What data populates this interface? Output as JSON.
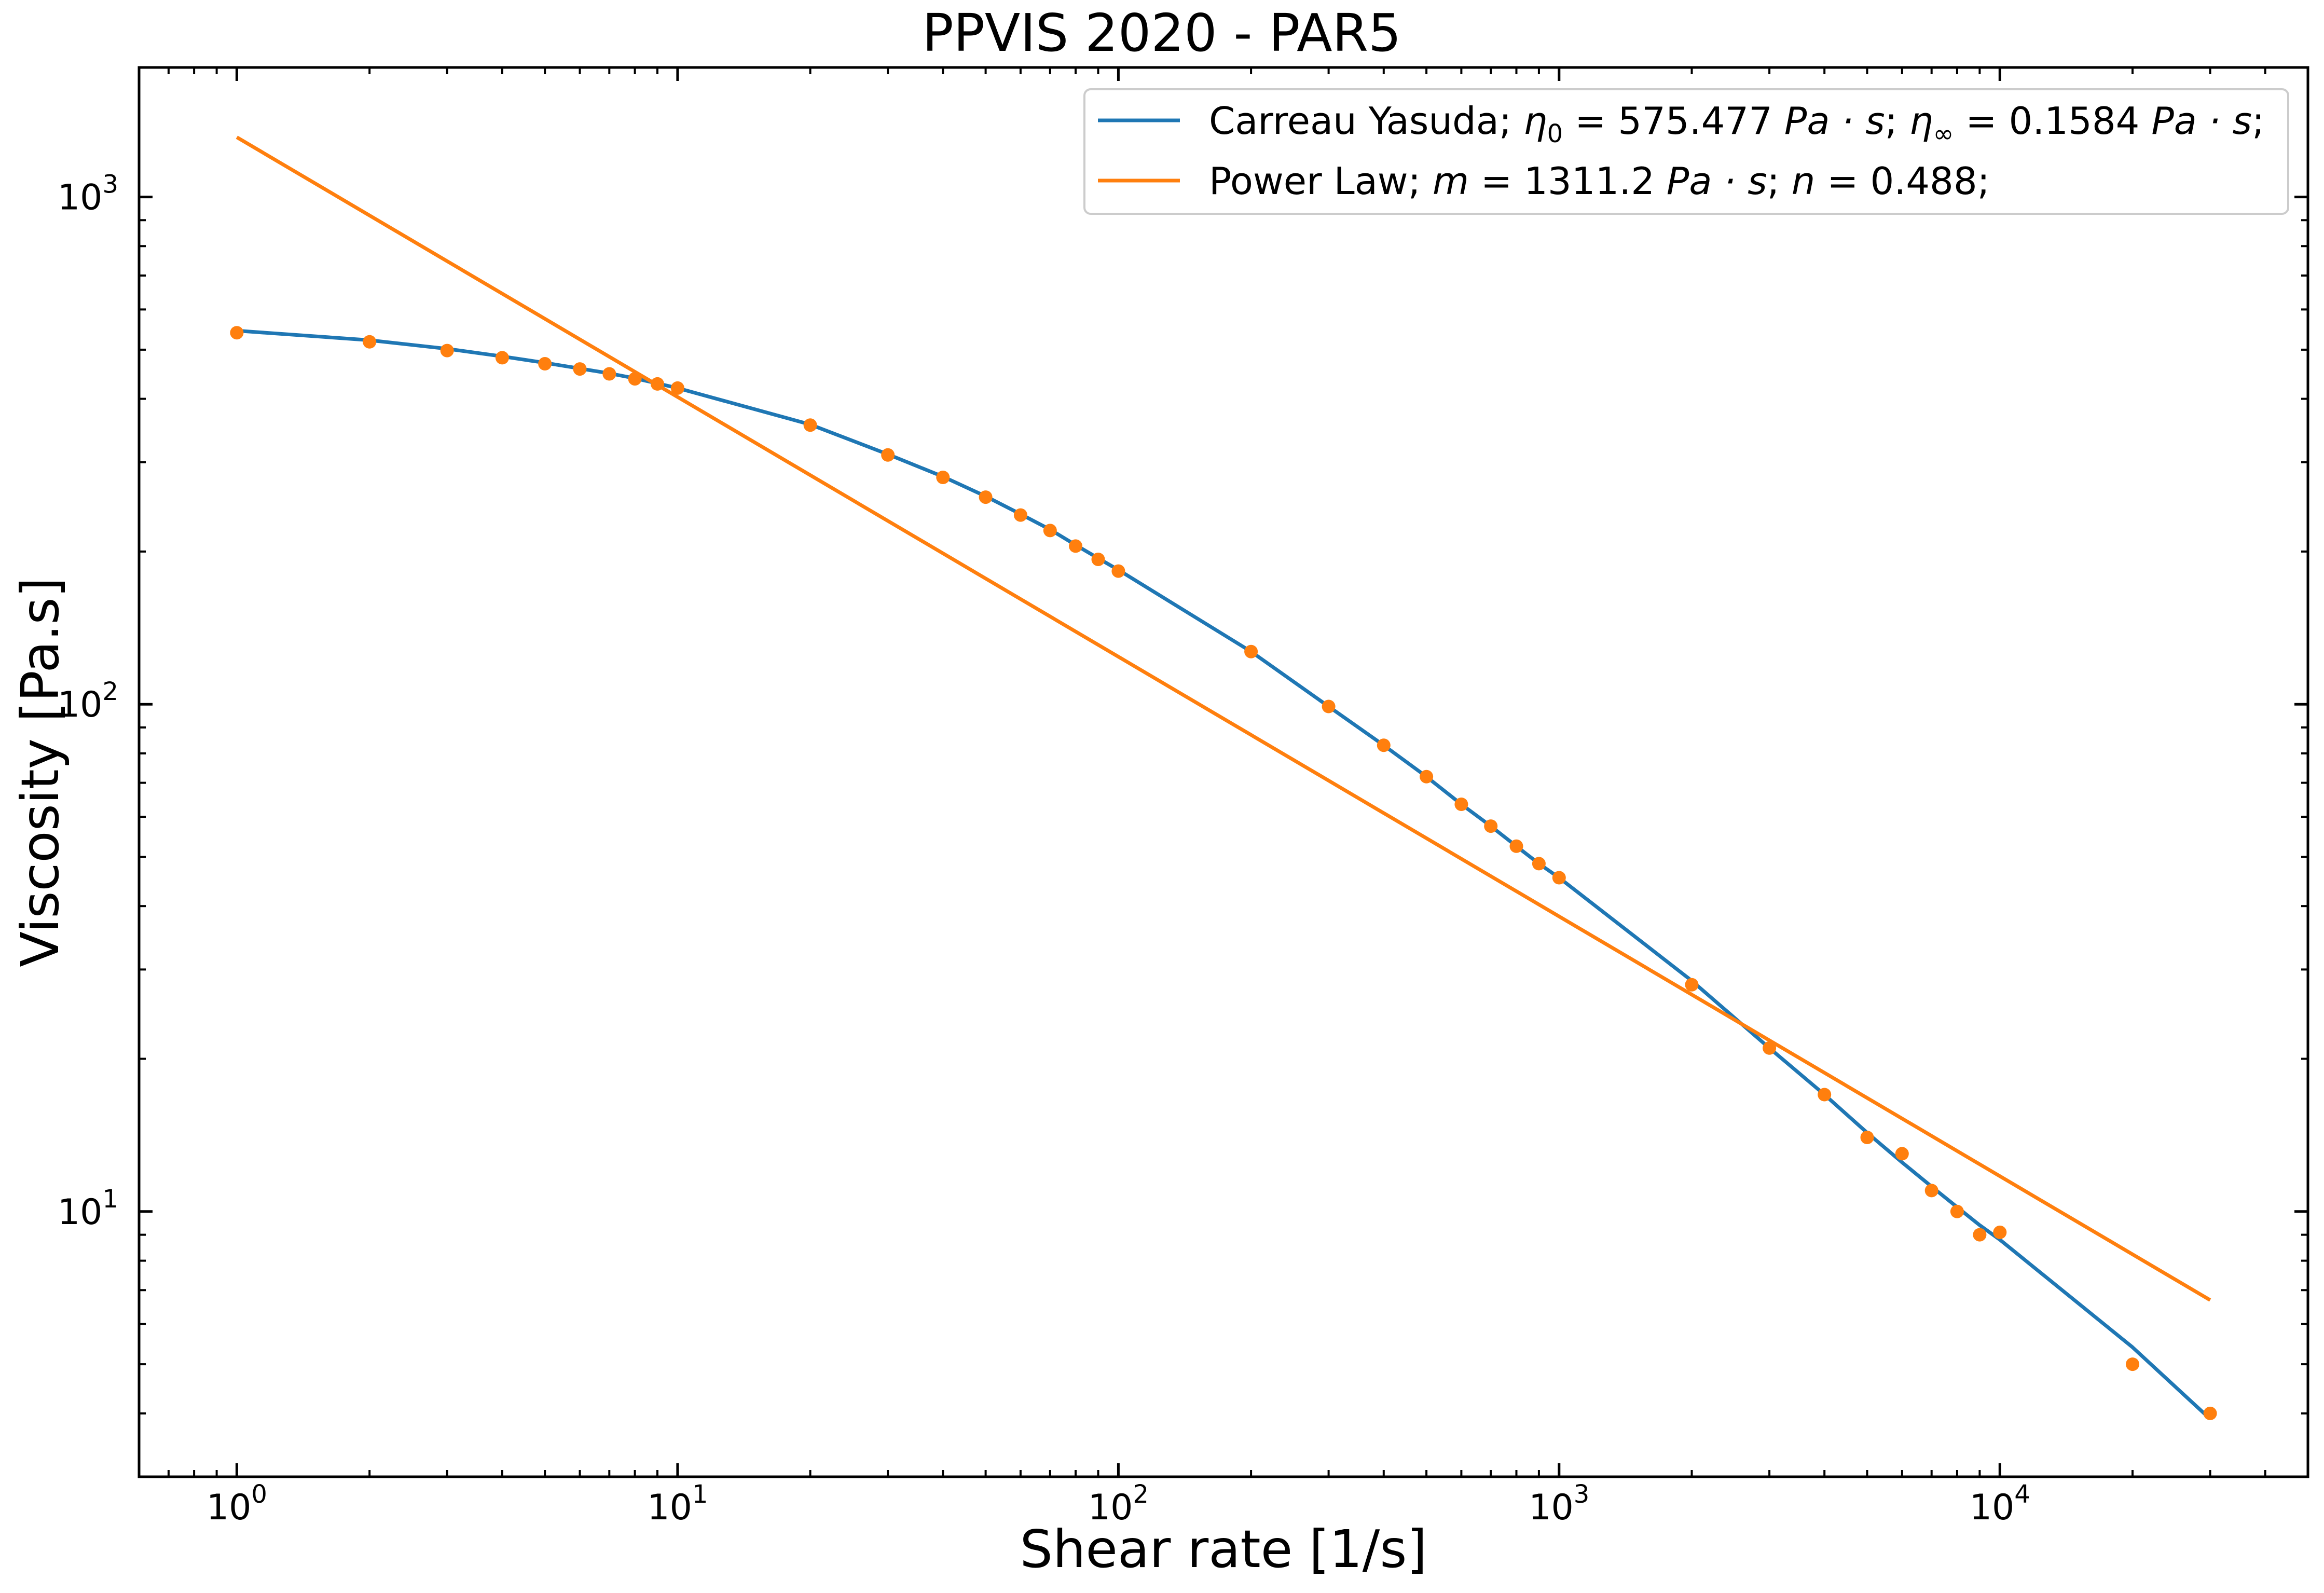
{
  "chart_data": {
    "type": "scatter",
    "title": "PPVIS 2020 - PAR5",
    "xlabel": "Shear rate [1/s]",
    "ylabel": "Viscosity [Pa.s]",
    "xscale": "log",
    "yscale": "log",
    "xlim": [
      0.6,
      50000
    ],
    "ylim": [
      3.0,
      1800
    ],
    "legend_position": "top-right",
    "x_ticks": [
      {
        "base": "10",
        "exp": "0",
        "value": 1
      },
      {
        "base": "10",
        "exp": "1",
        "value": 10
      },
      {
        "base": "10",
        "exp": "2",
        "value": 100
      },
      {
        "base": "10",
        "exp": "3",
        "value": 1000
      },
      {
        "base": "10",
        "exp": "4",
        "value": 10000
      }
    ],
    "y_ticks": [
      {
        "base": "10",
        "exp": "1",
        "value": 10
      },
      {
        "base": "10",
        "exp": "2",
        "value": 100
      },
      {
        "base": "10",
        "exp": "3",
        "value": 1000
      }
    ],
    "measured": {
      "color": "#ff7f0e",
      "points": [
        [
          1,
          540
        ],
        [
          2,
          518
        ],
        [
          3,
          498
        ],
        [
          4,
          482
        ],
        [
          5,
          469
        ],
        [
          6,
          458
        ],
        [
          7,
          448
        ],
        [
          8,
          438
        ],
        [
          9,
          428
        ],
        [
          10,
          420
        ],
        [
          20,
          355
        ],
        [
          30,
          310
        ],
        [
          40,
          280
        ],
        [
          50,
          256
        ],
        [
          60,
          236
        ],
        [
          70,
          220
        ],
        [
          80,
          205
        ],
        [
          90,
          193
        ],
        [
          100,
          183
        ],
        [
          200,
          127
        ],
        [
          300,
          99
        ],
        [
          400,
          83
        ],
        [
          500,
          72
        ],
        [
          600,
          63.5
        ],
        [
          700,
          57.5
        ],
        [
          800,
          52.5
        ],
        [
          900,
          48.5
        ],
        [
          1000,
          45.5
        ],
        [
          2000,
          28
        ],
        [
          3000,
          21
        ],
        [
          4000,
          17
        ],
        [
          5000,
          14
        ],
        [
          6000,
          13
        ],
        [
          7000,
          11
        ],
        [
          8000,
          10
        ],
        [
          9000,
          9
        ],
        [
          10000,
          9.1
        ],
        [
          20000,
          5
        ],
        [
          30000,
          4
        ]
      ]
    },
    "series": [
      {
        "name": "Carreau Yasuda",
        "legend_label": "Carreau Yasuda; ",
        "legend_math": [
          {
            "sym": "η",
            "sub": "0",
            "rest": " = 575.477 ",
            "unit": "Pa · s",
            "tail": "; "
          },
          {
            "sym": "η",
            "sub": "∞",
            "rest": " = 0.1584 ",
            "unit": "Pa · s",
            "tail": ";"
          }
        ],
        "color": "#1f77b4",
        "x": [
          1,
          2,
          3,
          4,
          5,
          6,
          7,
          8,
          9,
          10,
          20,
          30,
          40,
          50,
          60,
          70,
          80,
          90,
          100,
          200,
          300,
          400,
          500,
          600,
          700,
          800,
          900,
          1000,
          2000,
          3000,
          4000,
          5000,
          6000,
          7000,
          8000,
          9000,
          10000,
          20000,
          30000
        ],
        "y": [
          545,
          522,
          502,
          485,
          471,
          459,
          449,
          439,
          429,
          420,
          356,
          311,
          281,
          257,
          237,
          221,
          206,
          194,
          184,
          127,
          99,
          83,
          72,
          63.5,
          57.5,
          52.5,
          48.5,
          45.5,
          28.5,
          21,
          17,
          14.3,
          12.5,
          11.2,
          10.2,
          9.4,
          8.8,
          5.4,
          3.9
        ]
      },
      {
        "name": "Power Law",
        "legend_label": "Power Law; ",
        "legend_math": [
          {
            "sym": "m",
            "sub": "",
            "rest": " = 1311.2 ",
            "unit": "Pa · s",
            "tail": "; "
          },
          {
            "sym": "n",
            "sub": "",
            "rest": " = 0.488",
            "unit": "",
            "tail": ";"
          }
        ],
        "color": "#ff7f0e",
        "model": {
          "m": 1311.2,
          "n": 0.488
        },
        "x_range": [
          1,
          30000
        ]
      }
    ]
  }
}
